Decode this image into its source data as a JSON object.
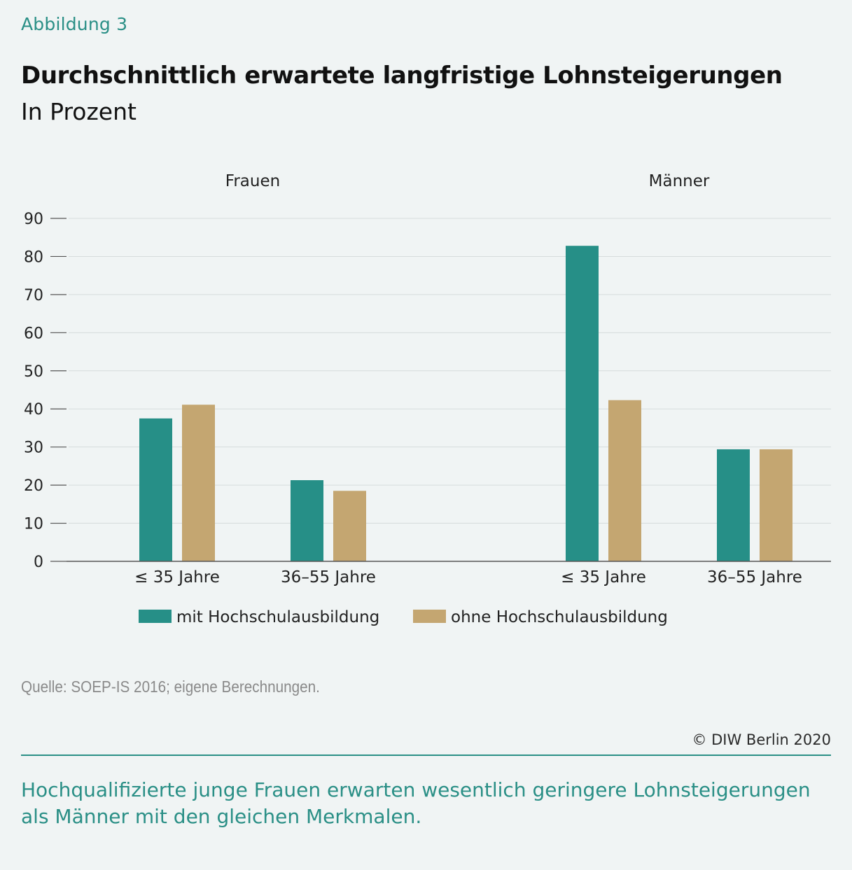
{
  "figure_label": "Abbildung 3",
  "title": "Durchschnittlich erwartete langfristige Lohnsteigerungen",
  "subtitle": "In Prozent",
  "source": "Quelle: SOEP-IS 2016; eigene Berechnungen.",
  "copyright": "© DIW Berlin 2020",
  "caption": "Hochqualifizierte junge Frauen erwarten wesentlich geringere Lohnsteigerungen als Männer mit den gleichen Merkmalen.",
  "colors": {
    "mit": "#268f87",
    "ohne": "#c4a671",
    "grid": "#d6dcdc",
    "axis": "#555555"
  },
  "chart_data": {
    "type": "bar",
    "title": "Durchschnittlich erwartete langfristige Lohnsteigerungen",
    "ylabel": "In Prozent",
    "ylim": [
      0,
      90
    ],
    "yticks": [
      0,
      10,
      20,
      30,
      40,
      50,
      60,
      70,
      80,
      90
    ],
    "grid": true,
    "legend_position": "bottom",
    "panels": [
      "Frauen",
      "Männer"
    ],
    "categories": [
      "≤ 35 Jahre",
      "36–55 Jahre",
      "≤ 35 Jahre",
      "36–55 Jahre"
    ],
    "category_panel": [
      "Frauen",
      "Frauen",
      "Männer",
      "Männer"
    ],
    "series": [
      {
        "name": "mit Hochschulausbildung",
        "color_key": "mit",
        "values": [
          37.5,
          21.3,
          82.8,
          29.4
        ]
      },
      {
        "name": "ohne Hochschulausbildung",
        "color_key": "ohne",
        "values": [
          41.1,
          18.5,
          42.3,
          29.4
        ]
      }
    ]
  }
}
